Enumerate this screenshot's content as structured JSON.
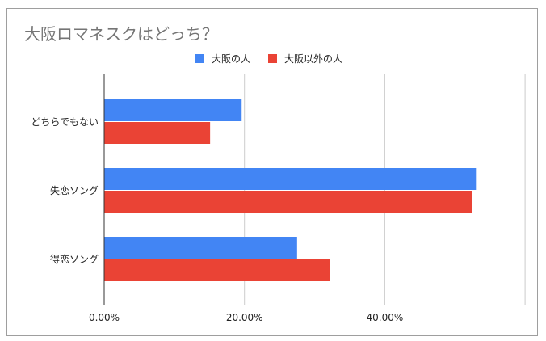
{
  "colors": {
    "series_0": "#4285f4",
    "series_1": "#ea4335",
    "gridline": "#cccccc",
    "axis": "#333333"
  },
  "chart_data": {
    "type": "bar",
    "orientation": "horizontal",
    "title": "大阪ロマネスクはどっち？",
    "xlabel": "",
    "ylabel": "",
    "categories": [
      "どちらでもない",
      "失恋ソング",
      "得恋ソング"
    ],
    "series": [
      {
        "name": "大阪の人",
        "values": [
          19.6,
          53.0,
          27.5
        ]
      },
      {
        "name": "大阪以外の人",
        "values": [
          15.1,
          52.5,
          32.2
        ]
      }
    ],
    "xlim": [
      0,
      60
    ],
    "xticks": [
      0,
      20,
      40
    ],
    "xtick_labels": [
      "0.00%",
      "20.00%",
      "40.00%"
    ],
    "grid": true,
    "legend": "top"
  }
}
